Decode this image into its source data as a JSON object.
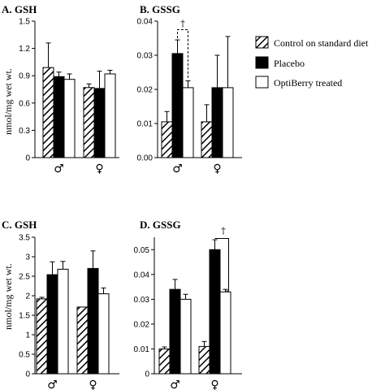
{
  "ylabel": "nmol/mg wet wt.",
  "legend": [
    {
      "label": "Control on standard diet",
      "style": "hatched"
    },
    {
      "label": "Placebo",
      "style": "black"
    },
    {
      "label": "OptiBerry treated",
      "style": "white"
    }
  ],
  "colors": {
    "placebo": "#000000",
    "optiberry": "#ffffff",
    "hatch": "#000000"
  },
  "groups": [
    "♂",
    "♀"
  ],
  "chart_data": [
    {
      "type": "bar",
      "title": "A. GSH",
      "categories": [
        "♂",
        "♀"
      ],
      "ylim": [
        0,
        1.5
      ],
      "yticks": [
        0,
        0.3,
        0.6,
        0.9,
        1.2,
        1.5
      ],
      "ytick_labels": [
        "0",
        "0.3",
        "0.6",
        "0.9",
        "1.2",
        "1.5"
      ],
      "series": [
        {
          "name": "Control on standard diet",
          "values": [
            0.99,
            0.77
          ],
          "err": [
            0.27,
            0.04
          ]
        },
        {
          "name": "Placebo",
          "values": [
            0.89,
            0.76
          ],
          "err": [
            0.05,
            0.19
          ]
        },
        {
          "name": "OptiBerry treated",
          "values": [
            0.86,
            0.92
          ],
          "err": [
            0.06,
            0.04
          ]
        }
      ]
    },
    {
      "type": "bar",
      "title": "B. GSSG",
      "categories": [
        "♂",
        "♀"
      ],
      "ylim": [
        0,
        0.04
      ],
      "yticks": [
        0,
        0.01,
        0.02,
        0.03,
        0.04
      ],
      "ytick_labels": [
        "0.00",
        "0.01",
        "0.02",
        "0.03",
        "0.04"
      ],
      "series": [
        {
          "name": "Control on standard diet",
          "values": [
            0.0105,
            0.0105
          ],
          "err": [
            0.003,
            0.005
          ]
        },
        {
          "name": "Placebo",
          "values": [
            0.0305,
            0.0205
          ],
          "err": [
            0.004,
            0.0095
          ]
        },
        {
          "name": "OptiBerry treated",
          "values": [
            0.0205,
            0.0205
          ],
          "err": [
            0.002,
            0.015
          ]
        }
      ],
      "annotations": [
        {
          "text": "†",
          "group": 0,
          "style": "dashed",
          "y": 0.0375
        }
      ]
    },
    {
      "type": "bar",
      "title": "C. GSH",
      "categories": [
        "♂",
        "♀"
      ],
      "ylim": [
        0,
        3.5
      ],
      "yticks": [
        0,
        0.5,
        1,
        1.5,
        2,
        2.5,
        3,
        3.5
      ],
      "ytick_labels": [
        "0",
        "0.5",
        "1",
        "1.5",
        "2",
        "2.5",
        "3",
        "3.5"
      ],
      "series": [
        {
          "name": "Control on standard diet",
          "values": [
            1.92,
            1.71
          ],
          "err": [
            0.04,
            0.0
          ]
        },
        {
          "name": "Placebo",
          "values": [
            2.54,
            2.7
          ],
          "err": [
            0.33,
            0.45
          ]
        },
        {
          "name": "OptiBerry treated",
          "values": [
            2.68,
            2.05
          ],
          "err": [
            0.2,
            0.15
          ]
        }
      ]
    },
    {
      "type": "bar",
      "title": "D. GSSG",
      "categories": [
        "♂",
        "♀"
      ],
      "ylim": [
        0,
        0.055
      ],
      "yticks": [
        0,
        0.01,
        0.02,
        0.03,
        0.04,
        0.05
      ],
      "ytick_labels": [
        "0",
        "0.01",
        "0.02",
        "0.03",
        "0.04",
        "0.05"
      ],
      "series": [
        {
          "name": "Control on standard diet",
          "values": [
            0.01,
            0.011
          ],
          "err": [
            0.0008,
            0.002
          ]
        },
        {
          "name": "Placebo",
          "values": [
            0.034,
            0.05
          ],
          "err": [
            0.004,
            0.004
          ]
        },
        {
          "name": "OptiBerry treated",
          "values": [
            0.03,
            0.033
          ],
          "err": [
            0.002,
            0.001
          ]
        }
      ],
      "annotations": [
        {
          "text": "†",
          "group": 1,
          "style": "solid",
          "y": 0.0545
        }
      ]
    }
  ]
}
